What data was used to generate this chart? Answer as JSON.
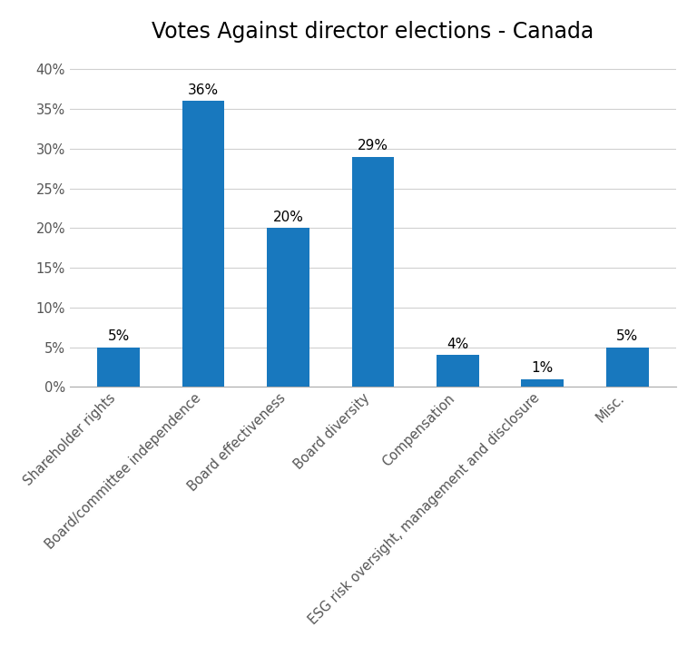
{
  "title": "Votes Against director elections - Canada",
  "categories": [
    "Shareholder rights",
    "Board/committee independence",
    "Board effectiveness",
    "Board diversity",
    "Compensation",
    "ESG risk oversight, management and disclosure",
    "Misc."
  ],
  "values": [
    5,
    36,
    20,
    29,
    4,
    1,
    5
  ],
  "bar_color": "#1878be",
  "background_color": "#ffffff",
  "ylim": [
    0,
    42
  ],
  "yticks": [
    0,
    5,
    10,
    15,
    20,
    25,
    30,
    35,
    40
  ],
  "title_fontsize": 17,
  "tick_fontsize": 10.5,
  "annotation_fontsize": 11,
  "label_rotation": 45,
  "bar_width": 0.5,
  "grid_color": "#d0d0d0",
  "spine_color": "#aaaaaa"
}
